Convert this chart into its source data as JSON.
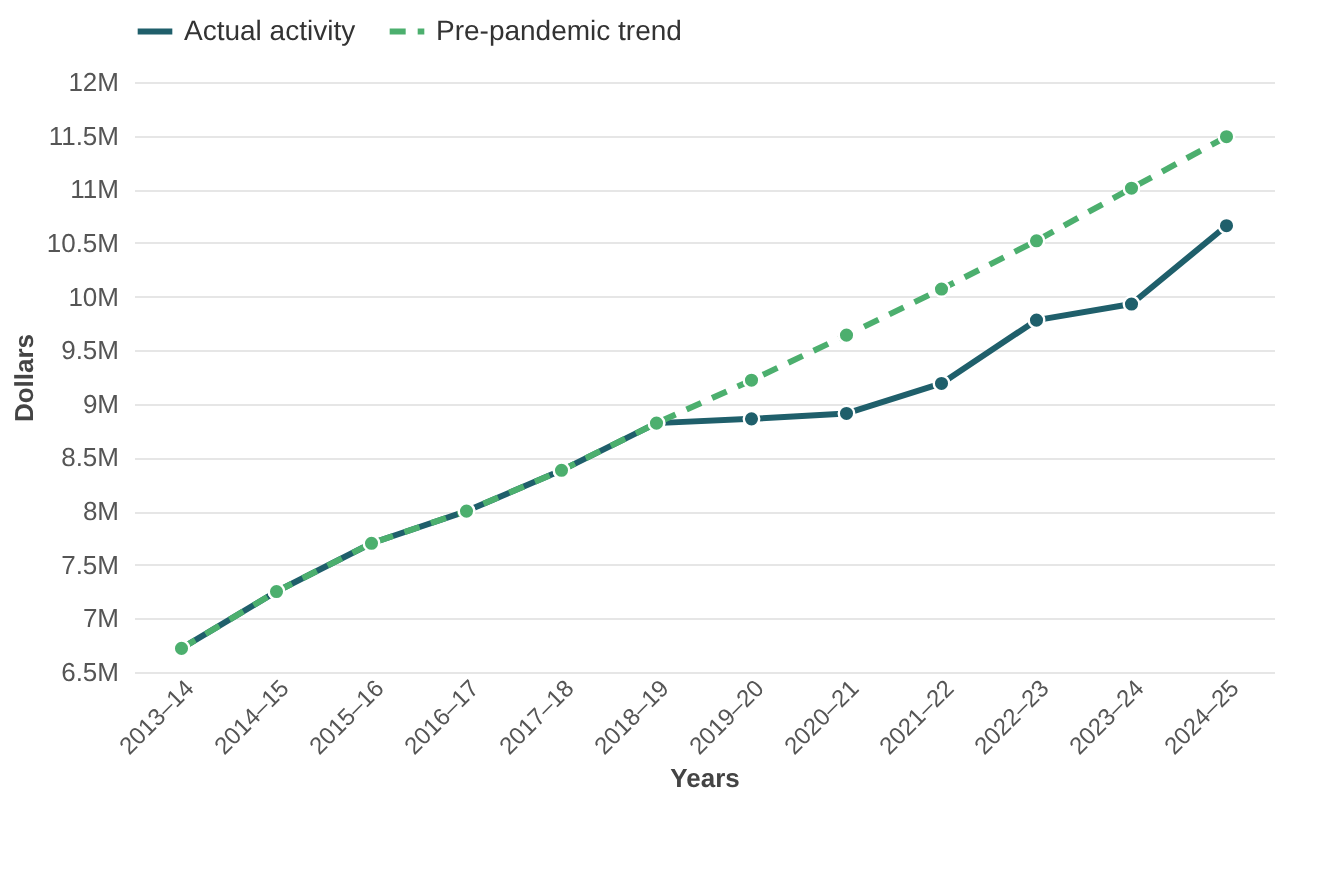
{
  "chart_data": {
    "type": "line",
    "xlabel": "Years",
    "ylabel": "Dollars",
    "categories": [
      "2013–14",
      "2014–15",
      "2015–16",
      "2016–17",
      "2017–18",
      "2018–19",
      "2019–20",
      "2020–21",
      "2021–22",
      "2022–23",
      "2023–24",
      "2024–25"
    ],
    "series": [
      {
        "name": "Actual activity",
        "color": "#1f5f6b",
        "line_style": "solid",
        "values": [
          6720000,
          7250000,
          7700000,
          8000000,
          8380000,
          8820000,
          8860000,
          8910000,
          9190000,
          9780000,
          9930000,
          10660000
        ]
      },
      {
        "name": "Pre-pandemic trend",
        "color": "#4caf6e",
        "line_style": "dashed",
        "values": [
          6720000,
          7250000,
          7700000,
          8000000,
          8380000,
          8820000,
          9220000,
          9640000,
          10070000,
          10520000,
          11010000,
          11490000
        ]
      }
    ],
    "ylim": [
      6500000,
      12000000
    ],
    "yticks": [
      {
        "value": 6500000,
        "label": "6.5M"
      },
      {
        "value": 7000000,
        "label": "7M"
      },
      {
        "value": 7500000,
        "label": "7.5M"
      },
      {
        "value": 8000000,
        "label": "8M"
      },
      {
        "value": 8500000,
        "label": "8.5M"
      },
      {
        "value": 9000000,
        "label": "9M"
      },
      {
        "value": 9500000,
        "label": "9.5M"
      },
      {
        "value": 10000000,
        "label": "10M"
      },
      {
        "value": 10500000,
        "label": "10.5M"
      },
      {
        "value": 11000000,
        "label": "11M"
      },
      {
        "value": 11500000,
        "label": "11.5M"
      },
      {
        "value": 12000000,
        "label": "12M"
      }
    ],
    "grid": "y",
    "legend": "top",
    "marker": "circle"
  }
}
